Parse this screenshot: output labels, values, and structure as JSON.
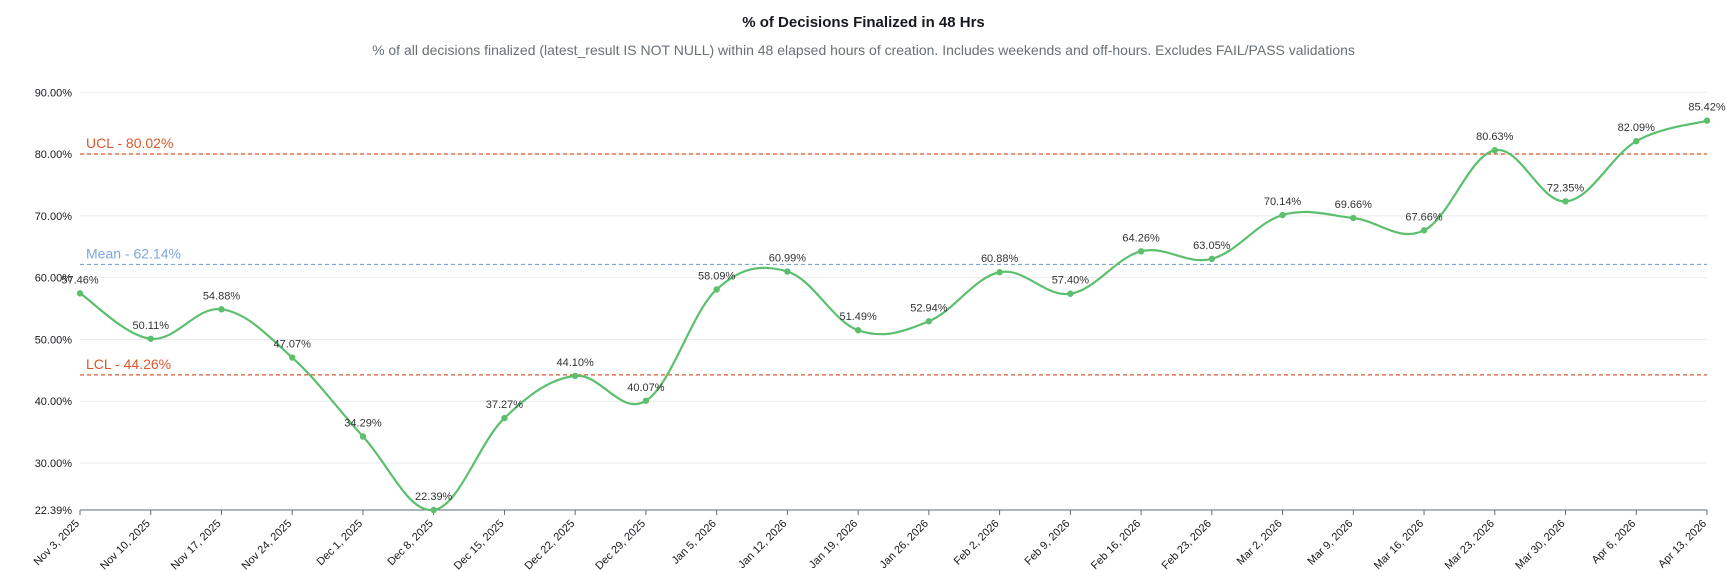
{
  "chart_data": {
    "type": "line",
    "title": "% of Decisions Finalized in 48 Hrs",
    "subtitle": "% of all decisions finalized (latest_result IS NOT NULL) within 48 elapsed hours of creation. Includes weekends and off-hours. Excludes FAIL/PASS validations",
    "categories": [
      "Nov 3, 2025",
      "Nov 10, 2025",
      "Nov 17, 2025",
      "Nov 24, 2025",
      "Dec 1, 2025",
      "Dec 8, 2025",
      "Dec 15, 2025",
      "Dec 22, 2025",
      "Dec 29, 2025",
      "Jan 5, 2026",
      "Jan 12, 2026",
      "Jan 19, 2026",
      "Jan 26, 2026",
      "Feb 2, 2026",
      "Feb 9, 2026",
      "Feb 16, 2026",
      "Feb 23, 2026",
      "Mar 2, 2026",
      "Mar 9, 2026",
      "Mar 16, 2026",
      "Mar 23, 2026",
      "Mar 30, 2026",
      "Apr 6, 2026",
      "Apr 13, 2026"
    ],
    "values": [
      57.46,
      50.11,
      54.88,
      47.07,
      34.29,
      22.39,
      37.27,
      44.1,
      40.07,
      58.09,
      60.99,
      51.49,
      52.94,
      60.88,
      57.4,
      64.26,
      63.05,
      70.14,
      69.66,
      67.66,
      80.63,
      72.35,
      82.09,
      85.42
    ],
    "data_labels": [
      "57.46%",
      "50.11%",
      "54.88%",
      "47.07%",
      "34.29%",
      "22.39%",
      "37.27%",
      "44.10%",
      "40.07%",
      "58.09%",
      "60.99%",
      "51.49%",
      "52.94%",
      "60.88%",
      "57.40%",
      "64.26%",
      "63.05%",
      "70.14%",
      "69.66%",
      "67.66%",
      "80.63%",
      "72.35%",
      "82.09%",
      "85.42%"
    ],
    "ylim": [
      22.39,
      92
    ],
    "y_ticks": [
      22.39,
      30,
      40,
      50,
      60,
      70,
      80,
      90
    ],
    "y_tick_labels": [
      "22.39%",
      "30.00%",
      "40.00%",
      "50.00%",
      "60.00%",
      "70.00%",
      "80.00%",
      "90.00%"
    ],
    "grid": true,
    "line_color": "#5cbf6e",
    "reference_lines": [
      {
        "label": "UCL - 80.02%",
        "value": 80.02,
        "color": "#d9582b"
      },
      {
        "label": "Mean -  62.14%",
        "value": 62.14,
        "color": "#7da7dc"
      },
      {
        "label": "LCL -  44.26%",
        "value": 44.26,
        "color": "#d9582b"
      }
    ]
  }
}
